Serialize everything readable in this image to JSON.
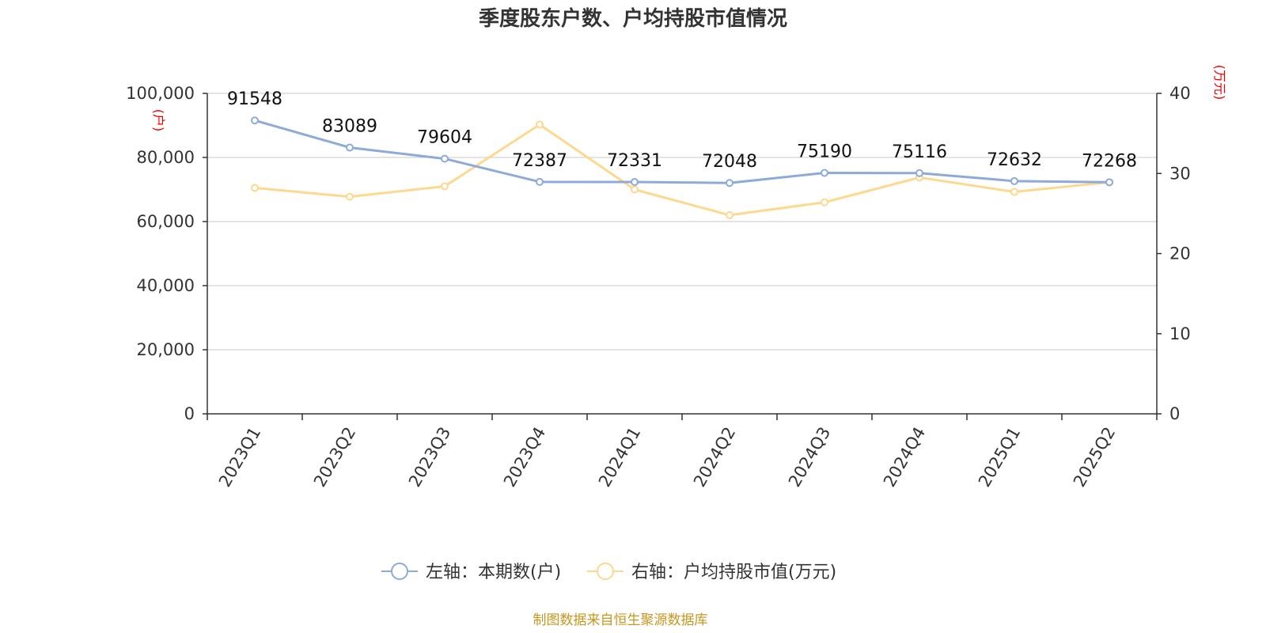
{
  "chart_data": {
    "type": "line",
    "title": "季度股东户数、户均持股市值情况",
    "categories": [
      "2023Q1",
      "2023Q2",
      "2023Q3",
      "2023Q4",
      "2024Q1",
      "2024Q2",
      "2024Q3",
      "2024Q4",
      "2025Q1",
      "2025Q2"
    ],
    "left_axis": {
      "unit": "(户)",
      "ylim": [
        0,
        100000
      ],
      "ticks": [
        "0",
        "20,000",
        "40,000",
        "60,000",
        "80,000",
        "100,000"
      ],
      "tick_values": [
        0,
        20000,
        40000,
        60000,
        80000,
        100000
      ]
    },
    "right_axis": {
      "unit": "(万元)",
      "ylim": [
        0,
        40
      ],
      "ticks": [
        "0",
        "10",
        "20",
        "30",
        "40"
      ],
      "tick_values": [
        0,
        10,
        20,
        30,
        40
      ]
    },
    "series": [
      {
        "name": "左轴：本期数(户)",
        "axis": "left",
        "color": "#8eaad8",
        "values": [
          91548,
          83089,
          79604,
          72387,
          72331,
          72048,
          75190,
          75116,
          72632,
          72268
        ],
        "labels": [
          "91548",
          "83089",
          "79604",
          "72387",
          "72331",
          "72048",
          "75190",
          "75116",
          "72632",
          "72268"
        ]
      },
      {
        "name": "右轴：户均持股市值(万元)",
        "axis": "right",
        "color": "#fcd98f",
        "values": [
          28.2,
          27.1,
          28.4,
          36.1,
          28.0,
          24.8,
          26.4,
          29.5,
          27.7,
          28.9
        ]
      }
    ],
    "grid": true,
    "legend_position": "bottom-center"
  },
  "source": "制图数据来自恒生聚源数据库"
}
